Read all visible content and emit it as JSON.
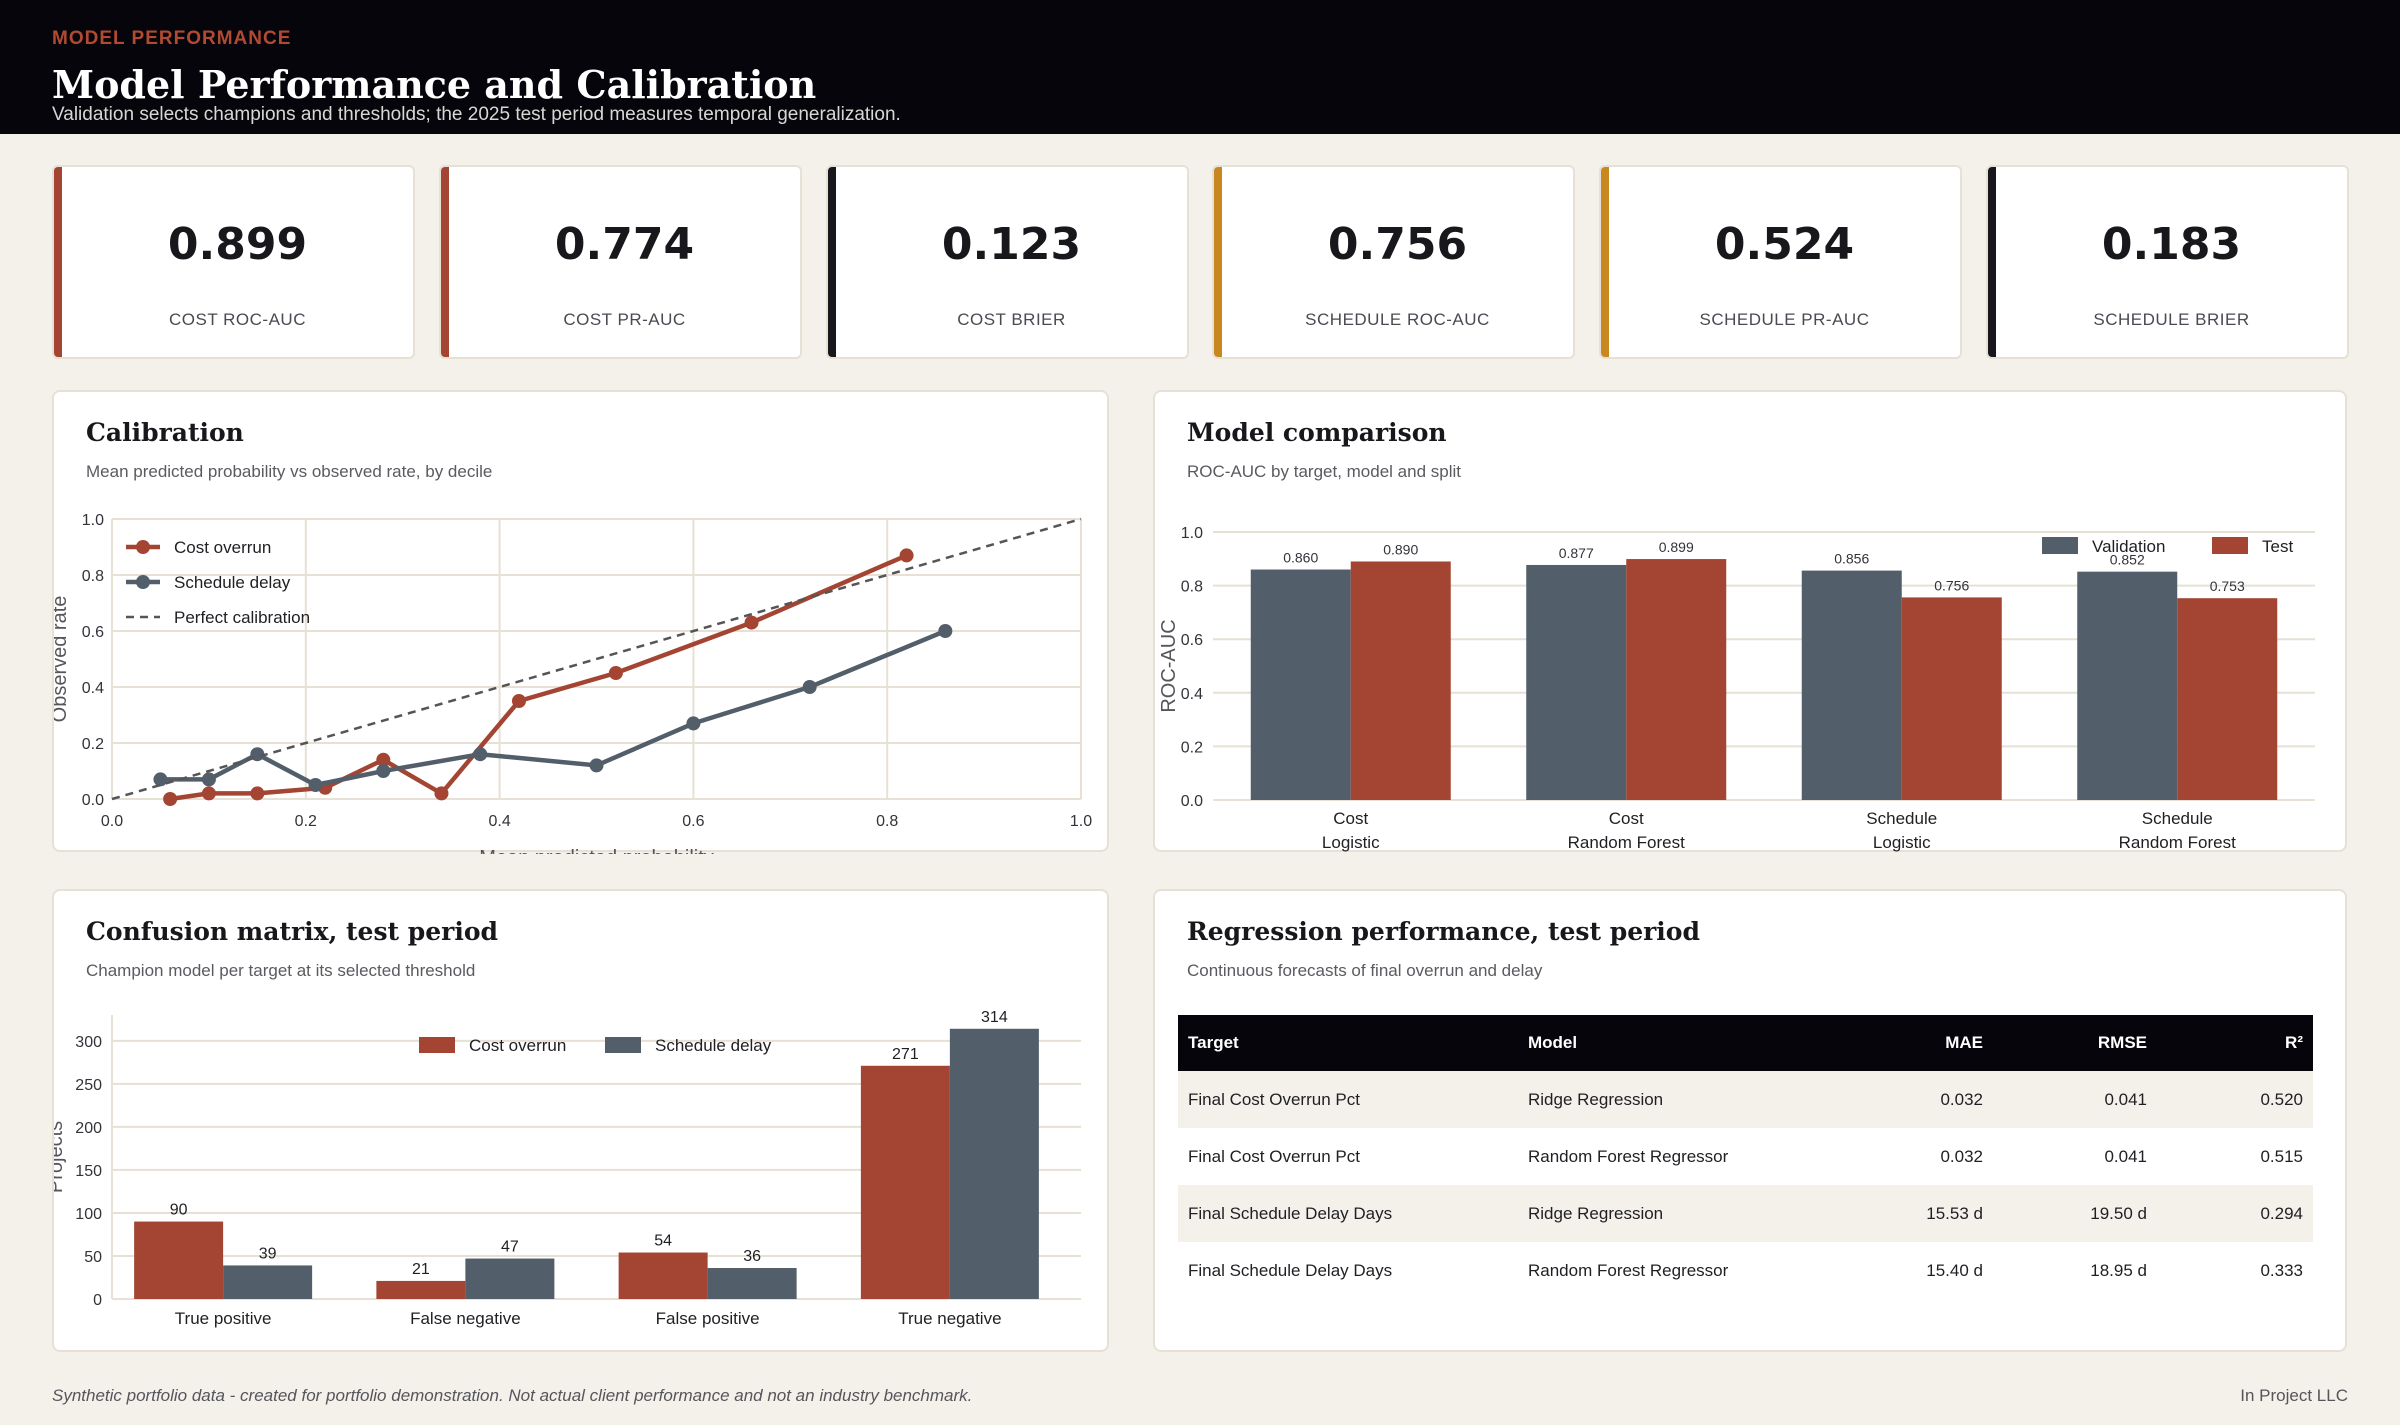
{
  "header": {
    "eyebrow": "MODEL PERFORMANCE",
    "title": "Model Performance and Calibration",
    "subtitle": "Validation selects champions and thresholds; the 2025 test period measures temporal generalization."
  },
  "kpis": [
    {
      "value": "0.899",
      "label": "COST ROC-AUC",
      "color": "#a34532"
    },
    {
      "value": "0.774",
      "label": "COST PR-AUC",
      "color": "#a34532"
    },
    {
      "value": "0.123",
      "label": "COST BRIER",
      "color": "#17171c"
    },
    {
      "value": "0.756",
      "label": "SCHEDULE ROC-AUC",
      "color": "#c9871f"
    },
    {
      "value": "0.524",
      "label": "SCHEDULE PR-AUC",
      "color": "#c9871f"
    },
    {
      "value": "0.183",
      "label": "SCHEDULE BRIER",
      "color": "#17171c"
    }
  ],
  "colors": {
    "cost": "#a34532",
    "schedule": "#525e6a",
    "diagonal": "#555555",
    "grid": "#e6e0d5"
  },
  "calibration": {
    "title": "Calibration",
    "subtitle": "Mean predicted probability vs observed rate, by decile"
  },
  "model_comparison": {
    "title": "Model comparison",
    "subtitle": "ROC-AUC by target, model and split"
  },
  "confusion": {
    "title": "Confusion matrix, test period",
    "subtitle": "Champion model per target at its selected threshold"
  },
  "regression": {
    "title": "Regression performance, test period",
    "subtitle": "Continuous forecasts of final overrun and delay",
    "columns": [
      "Target",
      "Model",
      "MAE",
      "RMSE",
      "R²"
    ],
    "rows": [
      [
        "Final Cost Overrun Pct",
        "Ridge Regression",
        "0.032",
        "0.041",
        "0.520"
      ],
      [
        "Final Cost Overrun Pct",
        "Random Forest Regressor",
        "0.032",
        "0.041",
        "0.515"
      ],
      [
        "Final Schedule Delay Days",
        "Ridge Regression",
        "15.53 d",
        "19.50 d",
        "0.294"
      ],
      [
        "Final Schedule Delay Days",
        "Random Forest Regressor",
        "15.40 d",
        "18.95 d",
        "0.333"
      ]
    ]
  },
  "footer": {
    "note": "Synthetic portfolio data - created for portfolio demonstration. Not actual client performance and not an industry benchmark.",
    "brand": "In Project LLC"
  },
  "chart_data": [
    {
      "type": "line",
      "xlabel": "Mean predicted probability",
      "ylabel": "Observed rate",
      "xlim": [
        0,
        1
      ],
      "ylim": [
        0,
        1
      ],
      "xticks": [
        "0.0",
        "0.2",
        "0.4",
        "0.6",
        "0.8",
        "1.0"
      ],
      "yticks": [
        "0.0",
        "0.2",
        "0.4",
        "0.6",
        "0.8",
        "1.0"
      ],
      "grid": true,
      "legend": "top-left",
      "series": [
        {
          "name": "Cost overrun",
          "color": "#a34532",
          "points": [
            [
              0.06,
              0.0
            ],
            [
              0.1,
              0.02
            ],
            [
              0.15,
              0.02
            ],
            [
              0.22,
              0.04
            ],
            [
              0.28,
              0.14
            ],
            [
              0.34,
              0.02
            ],
            [
              0.42,
              0.35
            ],
            [
              0.52,
              0.45
            ],
            [
              0.66,
              0.63
            ],
            [
              0.82,
              0.87
            ]
          ]
        },
        {
          "name": "Schedule delay",
          "color": "#525e6a",
          "points": [
            [
              0.05,
              0.07
            ],
            [
              0.1,
              0.07
            ],
            [
              0.15,
              0.16
            ],
            [
              0.21,
              0.05
            ],
            [
              0.28,
              0.1
            ],
            [
              0.38,
              0.16
            ],
            [
              0.5,
              0.12
            ],
            [
              0.6,
              0.27
            ],
            [
              0.72,
              0.4
            ],
            [
              0.86,
              0.6
            ]
          ]
        },
        {
          "name": "Perfect calibration",
          "color": "#555555",
          "dashed": true,
          "points": [
            [
              0,
              0
            ],
            [
              1,
              1
            ]
          ]
        }
      ]
    },
    {
      "type": "bar",
      "ylabel": "ROC-AUC",
      "ylim": [
        0,
        1
      ],
      "yticks": [
        "0.0",
        "0.2",
        "0.4",
        "0.6",
        "0.8",
        "1.0"
      ],
      "legend": "top-right",
      "categories": [
        [
          "Cost",
          "Logistic"
        ],
        [
          "Cost",
          "Random Forest"
        ],
        [
          "Schedule",
          "Logistic"
        ],
        [
          "Schedule",
          "Random Forest"
        ]
      ],
      "series": [
        {
          "name": "Validation",
          "color": "#525e6a",
          "values": [
            0.86,
            0.877,
            0.856,
            0.852
          ],
          "labels": [
            "0.860",
            "0.877",
            "0.856",
            "0.852"
          ]
        },
        {
          "name": "Test",
          "color": "#a34532",
          "values": [
            0.89,
            0.899,
            0.756,
            0.753
          ],
          "labels": [
            "0.890",
            "0.899",
            "0.756",
            "0.753"
          ]
        }
      ]
    },
    {
      "type": "bar",
      "ylabel": "Projects",
      "ylim": [
        0,
        330
      ],
      "yticks": [
        "0",
        "50",
        "100",
        "150",
        "200",
        "250",
        "300"
      ],
      "legend": "top-center",
      "categories": [
        "True positive",
        "False negative",
        "False positive",
        "True negative"
      ],
      "series": [
        {
          "name": "Cost overrun",
          "color": "#a34532",
          "values": [
            90,
            21,
            54,
            271
          ]
        },
        {
          "name": "Schedule delay",
          "color": "#525e6a",
          "values": [
            39,
            47,
            36,
            314
          ]
        }
      ]
    }
  ]
}
